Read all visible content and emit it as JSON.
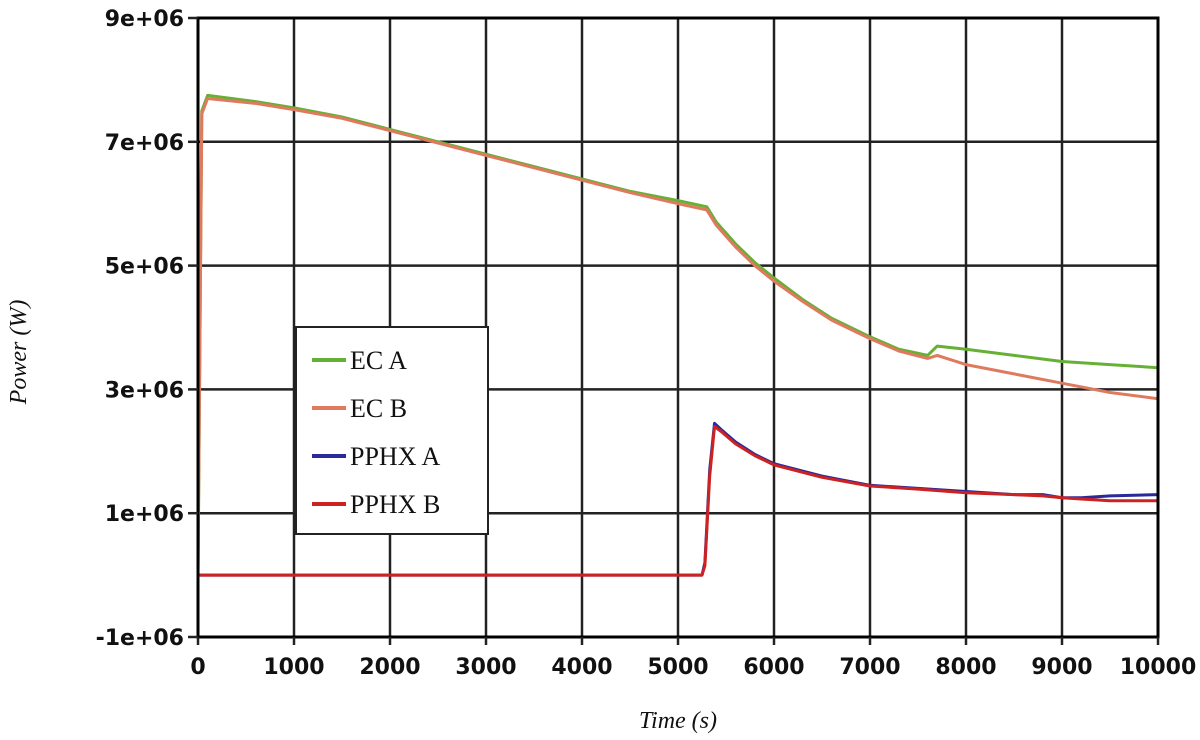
{
  "chart_data": {
    "type": "line",
    "title": "",
    "xlabel": "Time (s)",
    "ylabel": "Power (W)",
    "xlim": [
      0,
      10000
    ],
    "ylim": [
      -1000000,
      9000000
    ],
    "grid": true,
    "legend_position": "left-center",
    "x_ticks": [
      0,
      1000,
      2000,
      3000,
      4000,
      5000,
      6000,
      7000,
      8000,
      9000,
      10000
    ],
    "x_tick_labels": [
      "0",
      "1000",
      "2000",
      "3000",
      "4000",
      "5000",
      "6000",
      "7000",
      "8000",
      "9000",
      "10000"
    ],
    "y_ticks": [
      9000000,
      7000000,
      5000000,
      3000000,
      1000000,
      -1000000
    ],
    "y_tick_labels": [
      "9e+06",
      "7e+06",
      "5e+06",
      "3e+06",
      "1e+06",
      "-1e+06"
    ],
    "series": [
      {
        "name": "EC A",
        "color": "#66b035",
        "x": [
          0,
          40,
          100,
          600,
          1000,
          1500,
          2000,
          2500,
          3000,
          3500,
          4000,
          4500,
          5000,
          5300,
          5400,
          5600,
          5800,
          6000,
          6300,
          6600,
          7000,
          7300,
          7600,
          7700,
          8000,
          8500,
          9000,
          9500,
          10000
        ],
        "y": [
          0,
          7500000,
          7750000,
          7650000,
          7550000,
          7400000,
          7200000,
          7000000,
          6800000,
          6600000,
          6400000,
          6200000,
          6050000,
          5950000,
          5700000,
          5350000,
          5050000,
          4800000,
          4450000,
          4150000,
          3850000,
          3650000,
          3550000,
          3700000,
          3650000,
          3550000,
          3450000,
          3400000,
          3350000
        ]
      },
      {
        "name": "EC B",
        "color": "#df7a5e",
        "x": [
          0,
          40,
          100,
          600,
          1000,
          1500,
          2000,
          2500,
          3000,
          3500,
          4000,
          4500,
          5000,
          5300,
          5400,
          5600,
          5800,
          6000,
          6300,
          6600,
          7000,
          7300,
          7600,
          7700,
          8000,
          8500,
          9000,
          9500,
          10000
        ],
        "y": [
          0,
          7450000,
          7700000,
          7620000,
          7520000,
          7380000,
          7180000,
          6980000,
          6780000,
          6580000,
          6380000,
          6180000,
          6000000,
          5900000,
          5650000,
          5300000,
          5000000,
          4750000,
          4420000,
          4120000,
          3820000,
          3620000,
          3500000,
          3550000,
          3400000,
          3250000,
          3100000,
          2950000,
          2850000
        ]
      },
      {
        "name": "PPHX A",
        "color": "#2a2a9a",
        "x": [
          0,
          5250,
          5280,
          5330,
          5380,
          5450,
          5600,
          5800,
          6000,
          6500,
          7000,
          7500,
          8000,
          8500,
          8800,
          9000,
          9200,
          9500,
          10000
        ],
        "y": [
          0,
          0,
          200000,
          1700000,
          2450000,
          2350000,
          2150000,
          1950000,
          1800000,
          1600000,
          1450000,
          1400000,
          1350000,
          1300000,
          1300000,
          1250000,
          1250000,
          1280000,
          1300000
        ]
      },
      {
        "name": "PPHX B",
        "color": "#cc2222",
        "x": [
          0,
          5250,
          5280,
          5330,
          5380,
          5450,
          5600,
          5800,
          6000,
          6500,
          7000,
          7500,
          8000,
          8500,
          8800,
          9000,
          9200,
          9500,
          10000
        ],
        "y": [
          0,
          0,
          150000,
          1600000,
          2400000,
          2320000,
          2120000,
          1930000,
          1780000,
          1580000,
          1440000,
          1390000,
          1330000,
          1300000,
          1280000,
          1250000,
          1230000,
          1200000,
          1200000
        ]
      }
    ]
  }
}
